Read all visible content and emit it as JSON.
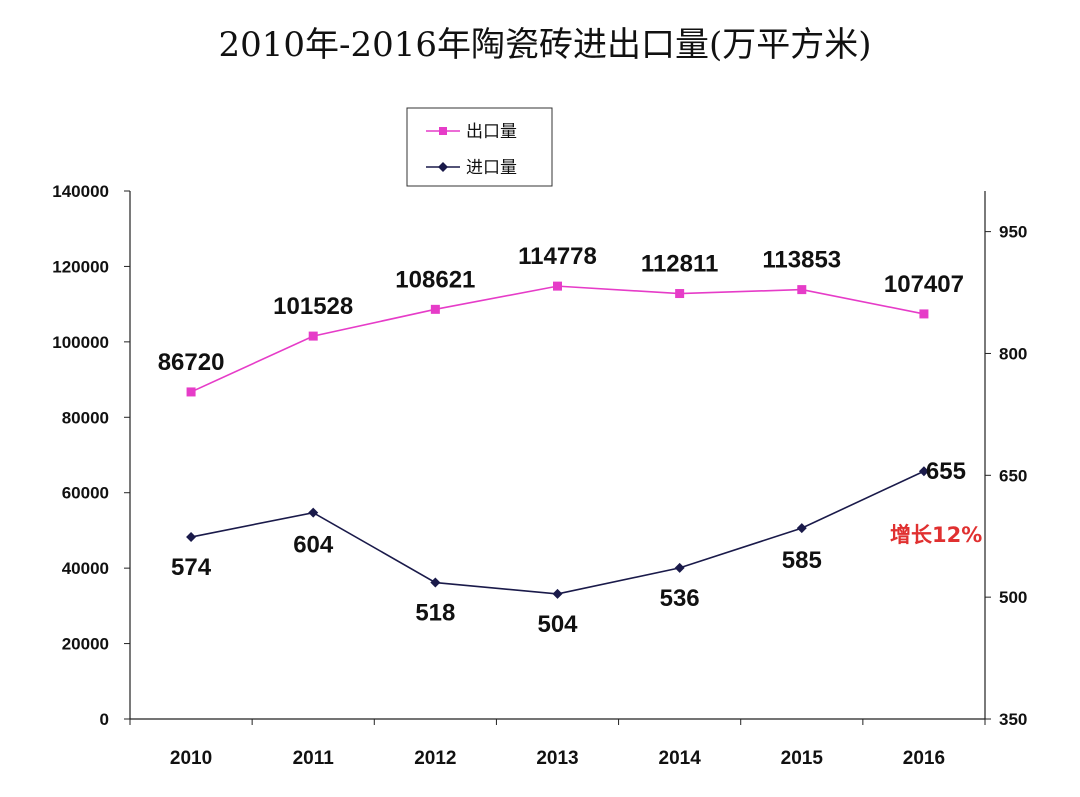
{
  "chart_data": {
    "type": "line",
    "title": "2010年-2016年陶瓷砖进出口量(万平方米)",
    "categories": [
      "2010",
      "2011",
      "2012",
      "2013",
      "2014",
      "2015",
      "2016"
    ],
    "series": [
      {
        "name": "出口量",
        "axis": "left",
        "color": "#e63cc8",
        "values": [
          86720,
          101528,
          108621,
          114778,
          112811,
          113853,
          107407
        ],
        "labels": [
          "86720",
          "101528",
          "108621",
          "114778",
          "112811",
          "113853",
          "107407"
        ]
      },
      {
        "name": "进口量",
        "axis": "right",
        "color": "#1a1a4a",
        "values": [
          574,
          604,
          518,
          504,
          536,
          585,
          655
        ],
        "labels": [
          "574",
          "604",
          "518",
          "504",
          "536",
          "585",
          "655"
        ]
      }
    ],
    "y_left": {
      "min": 0,
      "max": 140000,
      "ticks": [
        "0",
        "20000",
        "40000",
        "60000",
        "80000",
        "100000",
        "120000",
        "140000"
      ]
    },
    "y_right": {
      "min": 350,
      "max": 1000,
      "ticks": [
        "350",
        "500",
        "650",
        "800",
        "950"
      ]
    },
    "annotation": {
      "text": "增长12%",
      "color": "#e03030"
    },
    "legend_position": "top-left",
    "grid": false
  }
}
